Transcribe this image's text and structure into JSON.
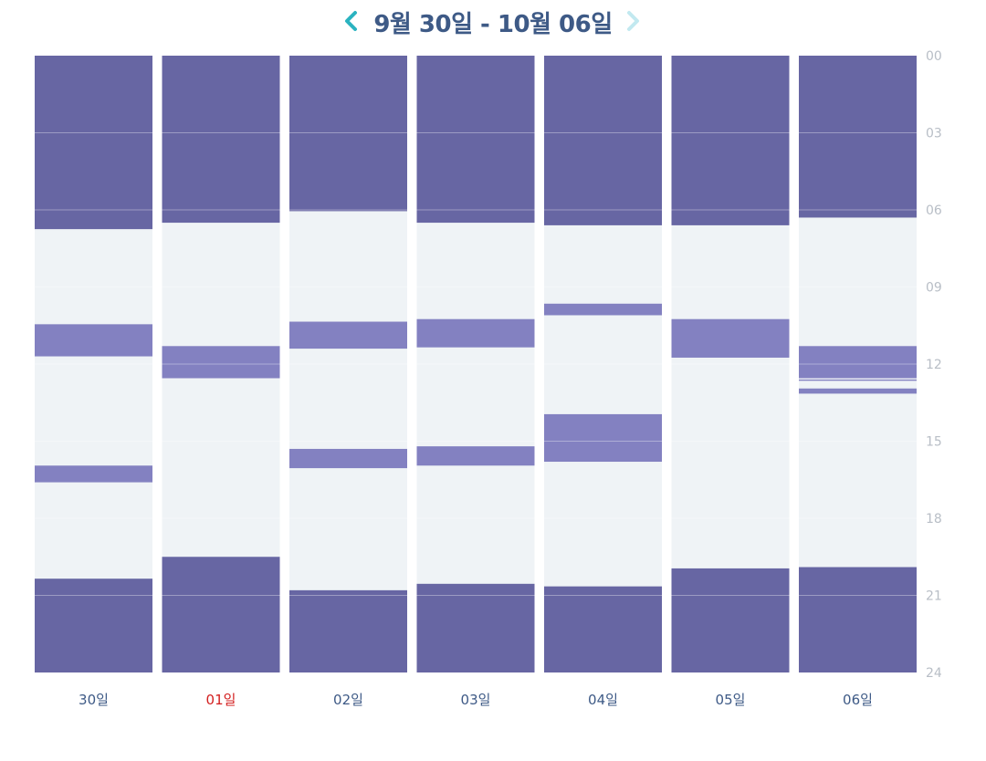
{
  "header": {
    "title": "9월 30일 - 10월 06일",
    "prev_icon": "chevron-left-icon",
    "next_icon": "chevron-right-icon"
  },
  "colors": {
    "sleep": "#6766a3",
    "nap": "#8381c1",
    "awake": "#eff3f6",
    "day_label": "#3e5a86",
    "sunday_label": "#d32020",
    "tick": "#b8bec6",
    "prev_arrow": "#2bb3c0",
    "next_arrow": "#c2e9f0"
  },
  "chart_data": {
    "type": "bar",
    "orientation": "vertical-timeline",
    "y_unit": "hour",
    "ylim": [
      0,
      24
    ],
    "y_ticks": [
      "00",
      "03",
      "06",
      "09",
      "12",
      "15",
      "18",
      "21",
      "24"
    ],
    "categories": [
      "30일",
      "01일",
      "02일",
      "03일",
      "04일",
      "05일",
      "06일"
    ],
    "highlight_category": "01일",
    "days": [
      {
        "label": "30일",
        "sleep": [
          [
            0,
            6.75
          ],
          [
            20.35,
            24
          ]
        ],
        "naps": [
          [
            10.45,
            11.7
          ],
          [
            15.95,
            16.6
          ]
        ]
      },
      {
        "label": "01일",
        "sleep": [
          [
            0,
            6.5
          ],
          [
            19.5,
            24
          ]
        ],
        "naps": [
          [
            11.3,
            12.55
          ]
        ]
      },
      {
        "label": "02일",
        "sleep": [
          [
            0,
            6.05
          ],
          [
            20.8,
            24
          ]
        ],
        "naps": [
          [
            10.35,
            11.4
          ],
          [
            15.3,
            16.05
          ]
        ]
      },
      {
        "label": "03일",
        "sleep": [
          [
            0,
            6.5
          ],
          [
            20.55,
            24
          ]
        ],
        "naps": [
          [
            10.25,
            11.35
          ],
          [
            15.2,
            15.95
          ]
        ]
      },
      {
        "label": "04일",
        "sleep": [
          [
            0,
            6.6
          ],
          [
            20.65,
            24
          ]
        ],
        "naps": [
          [
            9.65,
            10.1
          ],
          [
            13.95,
            15.8
          ]
        ]
      },
      {
        "label": "05일",
        "sleep": [
          [
            0,
            6.6
          ],
          [
            19.95,
            24
          ]
        ],
        "naps": [
          [
            10.25,
            11.75
          ]
        ]
      },
      {
        "label": "06일",
        "sleep": [
          [
            0,
            6.3
          ],
          [
            19.9,
            24
          ]
        ],
        "naps": [
          [
            11.3,
            12.55
          ],
          [
            12.6,
            12.65
          ],
          [
            12.95,
            13.15
          ]
        ]
      }
    ]
  }
}
